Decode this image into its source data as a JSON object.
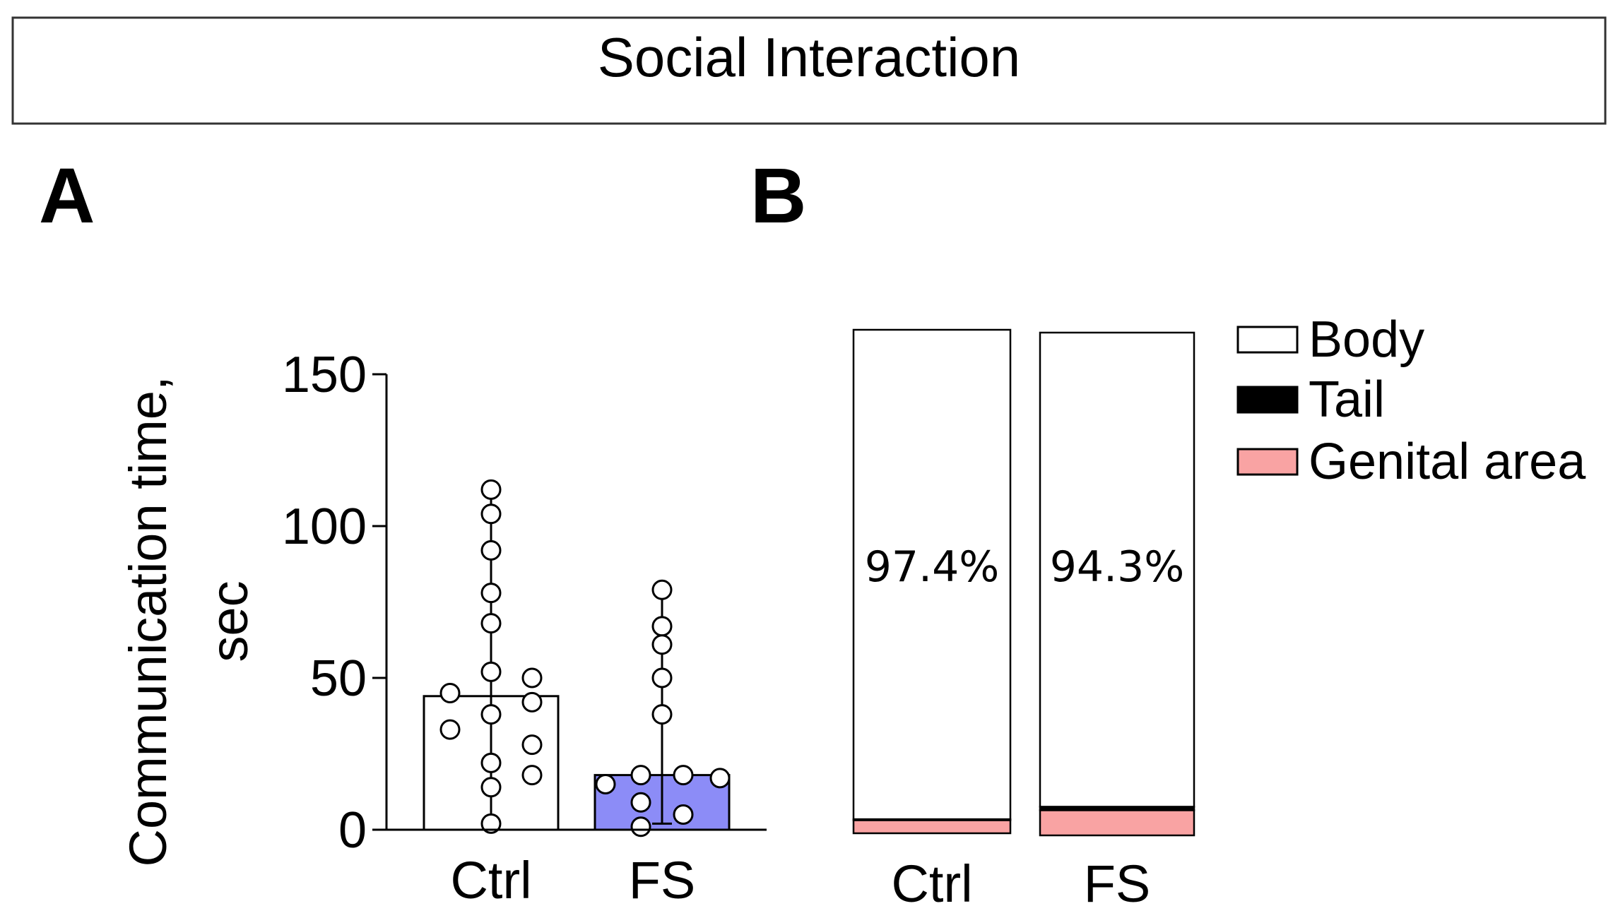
{
  "header": {
    "title": "Social Interaction"
  },
  "colors": {
    "fs_bar": "#8c8cf7",
    "ctrl_bar": "#ffffff",
    "genital": "#f9a3a3",
    "tail": "#000000",
    "body": "#ffffff",
    "axis": "#000000"
  },
  "chart_data": [
    {
      "panel": "A",
      "type": "bar",
      "title": "",
      "xlabel": "",
      "ylabel_line1": "Communication time,",
      "ylabel_line2": "sec",
      "ylim": [
        0,
        150
      ],
      "yticks": [
        {
          "value": 0,
          "label": "0"
        },
        {
          "value": 50,
          "label": "50"
        },
        {
          "value": 100,
          "label": "100"
        },
        {
          "value": 150,
          "label": "150"
        }
      ],
      "categories": [
        "Ctrl",
        "FS"
      ],
      "values": [
        44,
        18
      ],
      "error_range": [
        [
          2,
          112
        ],
        [
          2,
          79
        ]
      ],
      "points": [
        [
          112,
          104,
          92,
          78,
          68,
          52,
          45,
          33,
          38,
          22,
          14,
          2,
          50,
          42,
          28,
          18
        ],
        [
          79,
          67,
          61,
          50,
          38,
          18,
          15,
          17,
          9,
          1,
          5,
          18
        ]
      ]
    },
    {
      "panel": "B",
      "type": "bar",
      "stacked": true,
      "title": "",
      "categories": [
        "Ctrl",
        "FS"
      ],
      "segments": [
        {
          "name": "Genital area",
          "values": [
            2.6,
            5.0
          ]
        },
        {
          "name": "Tail",
          "values": [
            0.2,
            0.7
          ]
        },
        {
          "name": "Body",
          "values": [
            97.4,
            94.3
          ]
        }
      ],
      "labels": [
        "97.4%",
        "94.3%"
      ],
      "legend": [
        "Body",
        "Tail",
        "Genital area"
      ],
      "legend_position": "top-right"
    }
  ]
}
